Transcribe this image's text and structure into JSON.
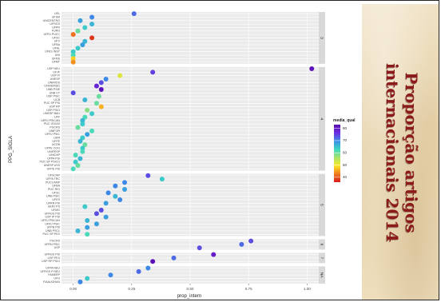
{
  "side_title": [
    "Proporção artigos",
    "internacionais 2014"
  ],
  "chart_data": {
    "type": "scatter",
    "xlabel": "prop_intern",
    "ylabel": "PPG_SIGLA",
    "xlim": [
      -0.05,
      1.05
    ],
    "xticks": [
      0.0,
      0.25,
      0.5,
      0.75,
      1.0
    ],
    "xtick_labels": [
      "0.00",
      "0.25",
      "0.50",
      "0.75",
      "1.00"
    ],
    "grid": true,
    "legend": {
      "title": "media_qual",
      "position": "right",
      "range": [
        36,
        83
      ],
      "ticks": [
        40,
        50,
        60,
        70,
        80
      ],
      "colors": [
        "#d7191c",
        "#f07b1d",
        "#fde725",
        "#a6e36a",
        "#3cd7c4",
        "#3a8ee6",
        "#6d2be0",
        "#5b0fb2"
      ]
    },
    "facets": [
      {
        "label": "3",
        "points": [
          {
            "y": "UEL",
            "x": 0.26,
            "q": 72
          },
          {
            "y": "UFSM",
            "x": 0.08,
            "q": 70
          },
          {
            "y": "UNICENTRO",
            "x": 0.03,
            "q": 68
          },
          {
            "y": "UFRGS",
            "x": 0.08,
            "q": 66
          },
          {
            "y": "UFPR",
            "x": 0.05,
            "q": 64
          },
          {
            "y": "FURG",
            "x": 0.02,
            "q": 60
          },
          {
            "y": "UFRJ PUCC",
            "x": 0.0,
            "q": 42
          },
          {
            "y": "UFSC",
            "x": 0.08,
            "q": 38
          },
          {
            "y": "UFV",
            "x": 0.05,
            "q": 66
          },
          {
            "y": "UFBA",
            "x": 0.04,
            "q": 68
          },
          {
            "y": "UFAL",
            "x": 0.02,
            "q": 64
          },
          {
            "y": "UFES INST",
            "x": 0.0,
            "q": 64
          },
          {
            "y": "UNI",
            "x": 0.0,
            "q": 62
          },
          {
            "y": "UFMS",
            "x": 0.0,
            "q": 48
          },
          {
            "y": "UFMT",
            "x": 0.0,
            "q": 44
          }
        ]
      },
      {
        "label": "4",
        "points": [
          {
            "y": "USP NEU",
            "x": 1.02,
            "q": 82
          },
          {
            "y": "UFJF",
            "x": 0.34,
            "q": 75
          },
          {
            "y": "USP FI",
            "x": 0.2,
            "q": 52
          },
          {
            "y": "UNESP",
            "x": 0.14,
            "q": 70
          },
          {
            "y": "UNIRIOS",
            "x": 0.12,
            "q": 74
          },
          {
            "y": "UNIVERSID",
            "x": 0.1,
            "q": 78
          },
          {
            "y": "UNB PSIE",
            "x": 0.12,
            "q": 82
          },
          {
            "y": "UNB CT",
            "x": 0.0,
            "q": 74
          },
          {
            "y": "USP PSIC",
            "x": 0.11,
            "q": 60
          },
          {
            "y": "UCB",
            "x": 0.05,
            "q": 66
          },
          {
            "y": "PUC SP PSI",
            "x": 0.1,
            "q": 60
          },
          {
            "y": "USP RP",
            "x": 0.12,
            "q": 46
          },
          {
            "y": "USP PSIO",
            "x": 0.06,
            "q": 58
          },
          {
            "y": "UNESP BAU",
            "x": 0.08,
            "q": 64
          },
          {
            "y": "UFF",
            "x": 0.05,
            "q": 62
          },
          {
            "y": "UERJ PSICAN",
            "x": 0.04,
            "q": 66
          },
          {
            "y": "PUC GOIAS",
            "x": 0.04,
            "q": 64
          },
          {
            "y": "PUCRS",
            "x": 0.02,
            "q": 60
          },
          {
            "y": "UNIFOR",
            "x": 0.08,
            "q": 62
          },
          {
            "y": "UFRJ PSIC",
            "x": 0.06,
            "q": 68
          },
          {
            "y": "UEM",
            "x": 0.04,
            "q": 64
          },
          {
            "y": "UFPE",
            "x": 0.03,
            "q": 66
          },
          {
            "y": "UCDB",
            "x": 0.05,
            "q": 60
          },
          {
            "y": "UFPE COG",
            "x": 0.04,
            "q": 64
          },
          {
            "y": "UNIFESP",
            "x": 0.04,
            "q": 62
          },
          {
            "y": "UNICAP",
            "x": 0.01,
            "q": 62
          },
          {
            "y": "UFPA PSI",
            "x": 0.03,
            "q": 66
          },
          {
            "y": "PUC SP PSICO",
            "x": 0.01,
            "q": 64
          },
          {
            "y": "UNESP ASS",
            "x": 0.02,
            "q": 60
          },
          {
            "y": "UFPE PSI",
            "x": 0.0,
            "q": 62
          }
        ]
      },
      {
        "label": "5",
        "points": [
          {
            "y": "UFSCAR",
            "x": 0.32,
            "q": 74
          },
          {
            "y": "UFPA TRC",
            "x": 0.38,
            "q": 64
          },
          {
            "y": "PUCCAMP",
            "x": 0.22,
            "q": 70
          },
          {
            "y": "UFBA",
            "x": 0.18,
            "q": 70
          },
          {
            "y": "PUC RIO",
            "x": 0.22,
            "q": 68
          },
          {
            "y": "UFSC",
            "x": 0.15,
            "q": 70
          },
          {
            "y": "UNB PSIC",
            "x": 0.18,
            "q": 66
          },
          {
            "y": "UFES",
            "x": 0.2,
            "q": 70
          },
          {
            "y": "UFRN PSI",
            "x": 0.14,
            "q": 68
          },
          {
            "y": "UERJ PS",
            "x": 0.05,
            "q": 64
          },
          {
            "y": "UFMG",
            "x": 0.12,
            "q": 74
          },
          {
            "y": "UFRGS PSI",
            "x": 0.1,
            "q": 74
          },
          {
            "y": "USP IP PSI",
            "x": 0.14,
            "q": 68
          },
          {
            "y": "UFRJ PSICAN",
            "x": 0.06,
            "q": 66
          },
          {
            "y": "UFRJ PSIC",
            "x": 0.1,
            "q": 68
          },
          {
            "y": "UFPB PSI",
            "x": 0.06,
            "q": 68
          },
          {
            "y": "UNB PSCL",
            "x": 0.02,
            "q": 66
          },
          {
            "y": "PUC SP PEX",
            "x": 0.06,
            "q": 62
          }
        ]
      },
      {
        "label": "6",
        "points": [
          {
            "y": "PUCRS",
            "x": 0.76,
            "q": 74
          },
          {
            "y": "UFRN PSIC",
            "x": 0.72,
            "q": 72
          },
          {
            "y": "USP",
            "x": 0.54,
            "q": 74
          }
        ]
      },
      {
        "label": "7",
        "points": [
          {
            "y": "UFRGS PSI",
            "x": 0.6,
            "q": 80
          },
          {
            "y": "USP PEX",
            "x": 0.43,
            "q": 72
          },
          {
            "y": "USP RP PSIO",
            "x": 0.34,
            "q": 83
          }
        ]
      },
      {
        "label": "NA",
        "points": [
          {
            "y": "UFPA NEU",
            "x": 0.32,
            "q": 70
          },
          {
            "y": "UFRGS P NEU",
            "x": 0.28,
            "q": 72
          },
          {
            "y": "FAMERP",
            "x": 0.16,
            "q": 70
          },
          {
            "y": "UFG",
            "x": 0.06,
            "q": 64
          },
          {
            "y": "FIAAUOHAN",
            "x": 0.03,
            "q": 70
          }
        ]
      }
    ]
  }
}
